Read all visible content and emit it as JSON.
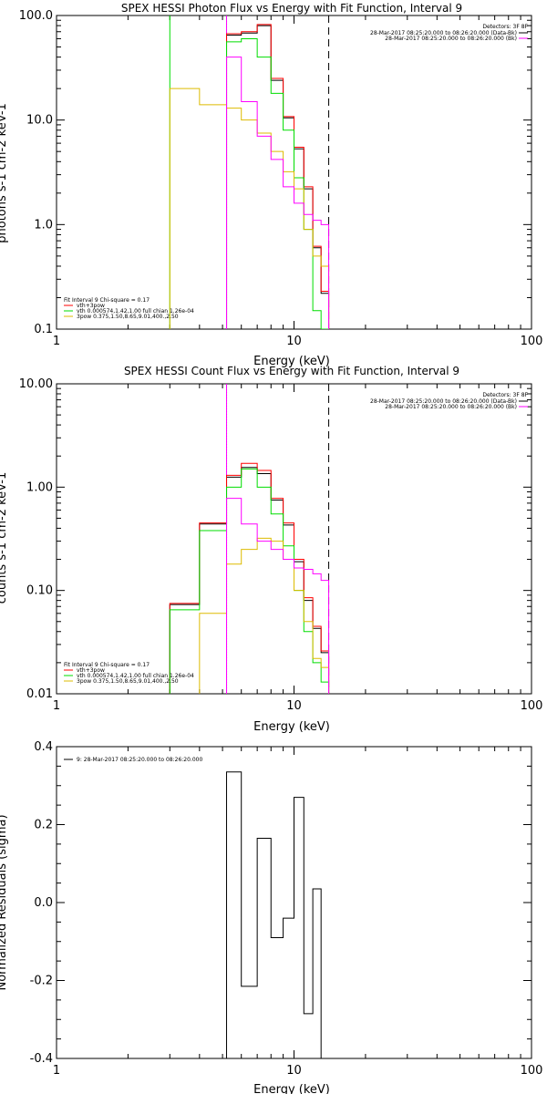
{
  "chart_data": [
    {
      "type": "line",
      "title": "SPEX HESSI Photon Flux vs Energy with Fit Function, Interval 9",
      "xlabel": "Energy (keV)",
      "ylabel": "photons s-1 cm-2 keV-1",
      "xscale": "log",
      "yscale": "log",
      "xlim": [
        1,
        100
      ],
      "ylim": [
        0.1,
        100
      ],
      "xticks": [
        "1",
        "10",
        "100"
      ],
      "yticks": [
        "0.1",
        "1.0",
        "10.0",
        "100.0"
      ],
      "vlines": [
        {
          "x": 3.0,
          "color": "#00dd00",
          "style": "solid"
        },
        {
          "x": 5.2,
          "color": "#00dd00",
          "style": "dotted"
        },
        {
          "x": 5.2,
          "color": "#ff00ff",
          "style": "solid"
        },
        {
          "x": 14.0,
          "color": "#000000",
          "style": "dashed"
        }
      ],
      "bin_edges": [
        3.0,
        4.0,
        5.2,
        6.0,
        7.0,
        8.0,
        9.0,
        10.0,
        11.0,
        12.0,
        13.0,
        14.0
      ],
      "series": [
        {
          "name": "vth+3pow",
          "color": "#000000",
          "values": [
            null,
            null,
            65,
            68,
            80,
            24,
            10.5,
            5.3,
            2.2,
            0.6,
            0.22
          ]
        },
        {
          "name": "vth+3pow",
          "color": "#ff0000",
          "values": [
            null,
            null,
            67,
            70,
            82,
            25,
            10.8,
            5.5,
            2.3,
            0.62,
            0.23
          ]
        },
        {
          "name": "vth 0.000574,1.42,1.00  full chian 1.26e-04",
          "color": "#00dd00",
          "values": [
            null,
            null,
            56,
            60,
            40,
            18,
            8,
            2.8,
            0.9,
            0.15,
            0.1
          ]
        },
        {
          "name": "3pow 0.375,1.50,8.65,9.01,400.,2.50",
          "color": "#ddbb00",
          "values": [
            20,
            14,
            13,
            10,
            7.5,
            5,
            3.2,
            2.2,
            0.9,
            0.5,
            0.4
          ]
        },
        {
          "name": "",
          "color": "#ff00ff",
          "values": [
            null,
            null,
            40,
            15,
            7,
            4.2,
            2.3,
            1.6,
            1.25,
            1.1,
            1.0
          ]
        }
      ],
      "legend": {
        "header": "Detectors: 3F 8F",
        "entries": [
          {
            "label": "28-Mar-2017 08:25:20.000 to 08:26:20.000 (Data-Bk)",
            "color": "#000000"
          },
          {
            "label": "28-Mar-2017 08:25:20.000 to 08:26:20.000 (Bk)",
            "color": "#ff00ff"
          }
        ]
      },
      "fit_legend": {
        "header": "Fit Interval 9   Chi-square = 0.17",
        "entries": [
          {
            "label": "vth+3pow",
            "color": "#ff0000"
          },
          {
            "label": "vth 0.000574,1.42,1.00  full chian 1.26e-04",
            "color": "#00dd00"
          },
          {
            "label": "3pow 0.375,1.50,8.65,9.01,400.,2.50",
            "color": "#ddbb00"
          }
        ]
      }
    },
    {
      "type": "line",
      "title": "SPEX HESSI Count Flux vs Energy with Fit Function, Interval 9",
      "xlabel": "Energy (keV)",
      "ylabel": "counts s-1 cm-2 keV-1",
      "xscale": "log",
      "yscale": "log",
      "xlim": [
        1,
        100
      ],
      "ylim": [
        0.01,
        10
      ],
      "xticks": [
        "1",
        "10",
        "100"
      ],
      "yticks": [
        "0.01",
        "0.10",
        "1.00",
        "10.00"
      ],
      "vlines": [
        {
          "x": 5.2,
          "color": "#000000",
          "style": "dotted"
        },
        {
          "x": 5.2,
          "color": "#ff00ff",
          "style": "solid"
        },
        {
          "x": 14.0,
          "color": "#000000",
          "style": "dashed"
        }
      ],
      "bin_edges": [
        3.0,
        4.0,
        5.2,
        6.0,
        7.0,
        8.0,
        9.0,
        10.0,
        11.0,
        12.0,
        13.0,
        14.0
      ],
      "series": [
        {
          "name": "vth+3pow",
          "color": "#000000",
          "values": [
            0.073,
            0.44,
            1.25,
            1.55,
            1.35,
            0.75,
            0.43,
            0.19,
            0.08,
            0.043,
            0.025
          ]
        },
        {
          "name": "vth+3pow",
          "color": "#ff0000",
          "values": [
            0.075,
            0.45,
            1.3,
            1.7,
            1.45,
            0.78,
            0.45,
            0.2,
            0.085,
            0.045,
            0.026
          ]
        },
        {
          "name": "vth 0.000574,1.42,1.00  full chian 1.26e-04",
          "color": "#00dd00",
          "values": [
            0.065,
            0.38,
            1.0,
            1.5,
            1.0,
            0.55,
            0.27,
            0.1,
            0.04,
            0.02,
            0.013
          ]
        },
        {
          "name": "3pow 0.375,1.50,8.65,9.01,400.,2.50",
          "color": "#ddbb00",
          "values": [
            null,
            0.06,
            0.18,
            0.25,
            0.32,
            0.3,
            0.2,
            0.1,
            0.05,
            0.022,
            0.018
          ]
        },
        {
          "name": "",
          "color": "#ff00ff",
          "values": [
            null,
            null,
            0.78,
            0.44,
            0.3,
            0.25,
            0.2,
            0.165,
            0.16,
            0.145,
            0.125
          ]
        }
      ],
      "legend": {
        "header": "Detectors: 3F 8F",
        "entries": [
          {
            "label": "28-Mar-2017 08:25:20.000 to 08:26:20.000 (Data-Bk)",
            "color": "#000000"
          },
          {
            "label": "28-Mar-2017 08:25:20.000 to 08:26:20.000 (Bk)",
            "color": "#ff00ff"
          }
        ]
      },
      "fit_legend": {
        "header": "Fit Interval 9   Chi-square = 0.17",
        "entries": [
          {
            "label": "vth+3pow",
            "color": "#ff0000"
          },
          {
            "label": "vth 0.000574,1.42,1.00  full chian 1.26e-04",
            "color": "#00dd00"
          },
          {
            "label": "3pow 0.375,1.50,8.65,9.01,400.,2.50",
            "color": "#ddbb00"
          }
        ]
      }
    },
    {
      "type": "line",
      "title": "",
      "xlabel": "Energy (keV)",
      "ylabel": "Normalized Residuals (sigma)",
      "xscale": "log",
      "yscale": "linear",
      "xlim": [
        1,
        100
      ],
      "ylim": [
        -0.4,
        0.4
      ],
      "xticks": [
        "1",
        "10",
        "100"
      ],
      "yticks": [
        "-0.4",
        "-0.2",
        "0.0",
        "0.2",
        "0.4"
      ],
      "bin_edges": [
        5.2,
        6.0,
        7.0,
        8.0,
        9.0,
        10.0,
        11.0,
        12.0,
        13.0,
        14.0
      ],
      "series": [
        {
          "name": "9: 28-Mar-2017 08:25:20.000 to 08:26:20.000",
          "color": "#000000",
          "values": [
            0.335,
            -0.215,
            0.165,
            -0.09,
            -0.04,
            0.27,
            -0.285,
            0.035,
            -0.4
          ]
        }
      ],
      "legend": {
        "entries": [
          {
            "label": "9: 28-Mar-2017 08:25:20.000 to 08:26:20.000",
            "color": "#000000"
          }
        ]
      }
    }
  ]
}
